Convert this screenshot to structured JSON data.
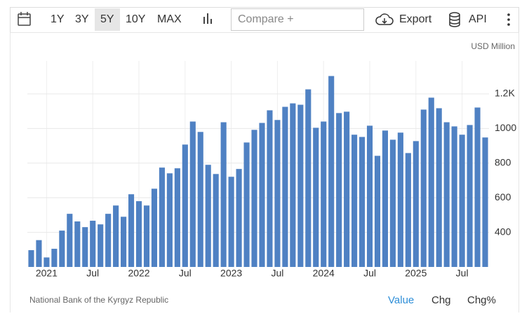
{
  "toolbar": {
    "ranges": [
      "1Y",
      "3Y",
      "5Y",
      "10Y",
      "MAX"
    ],
    "active_range": "5Y",
    "compare": "Compare +",
    "export": "Export",
    "api": "API"
  },
  "chart_data": {
    "type": "bar",
    "unit_label": "USD Million",
    "source": "National Bank of the Kyrgyz Republic",
    "tabs": [
      "Value",
      "Chg",
      "Chg%"
    ],
    "active_tab": "Value",
    "categories": [
      null,
      null,
      "2021",
      null,
      null,
      null,
      null,
      null,
      "Jul",
      null,
      null,
      null,
      null,
      null,
      "2022",
      null,
      null,
      null,
      null,
      null,
      "Jul",
      null,
      null,
      null,
      null,
      null,
      "2023",
      null,
      null,
      null,
      null,
      null,
      "Jul",
      null,
      null,
      null,
      null,
      null,
      "2024",
      null,
      null,
      null,
      null,
      null,
      "Jul",
      null,
      null,
      null,
      null,
      null,
      "2025",
      null,
      null,
      null,
      null,
      null,
      "Jul",
      null,
      null,
      null
    ],
    "values": [
      297,
      355,
      255,
      305,
      410,
      507,
      463,
      430,
      467,
      446,
      507,
      555,
      490,
      620,
      580,
      555,
      652,
      774,
      741,
      770,
      907,
      1040,
      980,
      790,
      737,
      1036,
      721,
      766,
      919,
      992,
      1032,
      1105,
      1049,
      1125,
      1145,
      1137,
      1226,
      1004,
      1040,
      1303,
      1089,
      1097,
      964,
      951,
      1016,
      842,
      988,
      935,
      976,
      858,
      927,
      1109,
      1178,
      1117,
      1036,
      1012,
      964,
      1020,
      1121,
      948
    ],
    "color": "#4f81c3",
    "ylim": [
      200,
      1390
    ],
    "yticks": [
      400,
      600,
      800,
      1000,
      {
        "value": 1200,
        "label": "1.2K"
      }
    ],
    "grid": true
  }
}
